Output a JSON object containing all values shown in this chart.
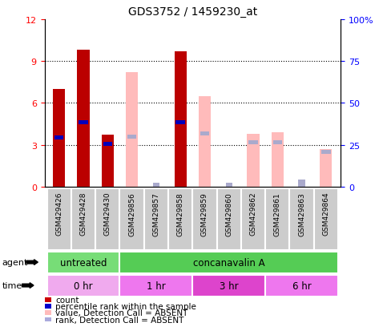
{
  "title": "GDS3752 / 1459230_at",
  "samples": [
    "GSM429426",
    "GSM429428",
    "GSM429430",
    "GSM429856",
    "GSM429857",
    "GSM429858",
    "GSM429859",
    "GSM429860",
    "GSM429862",
    "GSM429861",
    "GSM429863",
    "GSM429864"
  ],
  "count_values": [
    7.0,
    9.8,
    3.7,
    0,
    0,
    9.7,
    0,
    0,
    0,
    0,
    0,
    0
  ],
  "percentile_rank": [
    3.5,
    4.6,
    3.05,
    0,
    0,
    4.6,
    0,
    0,
    0,
    0,
    0,
    0
  ],
  "absent_value": [
    0,
    0,
    0,
    8.2,
    0,
    0,
    6.5,
    0,
    3.8,
    3.9,
    0,
    2.7
  ],
  "absent_rank": [
    0,
    0,
    0,
    3.6,
    0,
    0,
    3.8,
    0,
    3.2,
    3.2,
    0,
    2.5
  ],
  "absent_rank_small_idx": [
    4,
    7,
    10
  ],
  "absent_rank_small_val": [
    0.3,
    0.3,
    0.5
  ],
  "ylim_left": [
    0,
    12
  ],
  "ylim_right": [
    0,
    100
  ],
  "yticks_left": [
    0,
    3,
    6,
    9,
    12
  ],
  "yticks_right": [
    0,
    25,
    50,
    75,
    100
  ],
  "yticklabels_right": [
    "0",
    "25",
    "50",
    "75",
    "100%"
  ],
  "agent_labels": [
    {
      "text": "untreated",
      "start": 0,
      "end": 3,
      "color": "#77dd77"
    },
    {
      "text": "concanavalin A",
      "start": 3,
      "end": 12,
      "color": "#55cc55"
    }
  ],
  "time_labels": [
    {
      "text": "0 hr",
      "start": 0,
      "end": 3,
      "color": "#f0aaee"
    },
    {
      "text": "1 hr",
      "start": 3,
      "end": 6,
      "color": "#ee77ee"
    },
    {
      "text": "3 hr",
      "start": 6,
      "end": 9,
      "color": "#dd44cc"
    },
    {
      "text": "6 hr",
      "start": 9,
      "end": 12,
      "color": "#ee77ee"
    }
  ],
  "legend_items": [
    {
      "color": "#cc0000",
      "label": "count"
    },
    {
      "color": "#0000cc",
      "label": "percentile rank within the sample"
    },
    {
      "color": "#ffbbbb",
      "label": "value, Detection Call = ABSENT"
    },
    {
      "color": "#aaaadd",
      "label": "rank, Detection Call = ABSENT"
    }
  ],
  "bar_width": 0.5,
  "count_color": "#bb0000",
  "rank_color": "#0000bb",
  "absent_val_color": "#ffbbbb",
  "absent_rank_color": "#aaaacc",
  "sample_box_color": "#cccccc"
}
